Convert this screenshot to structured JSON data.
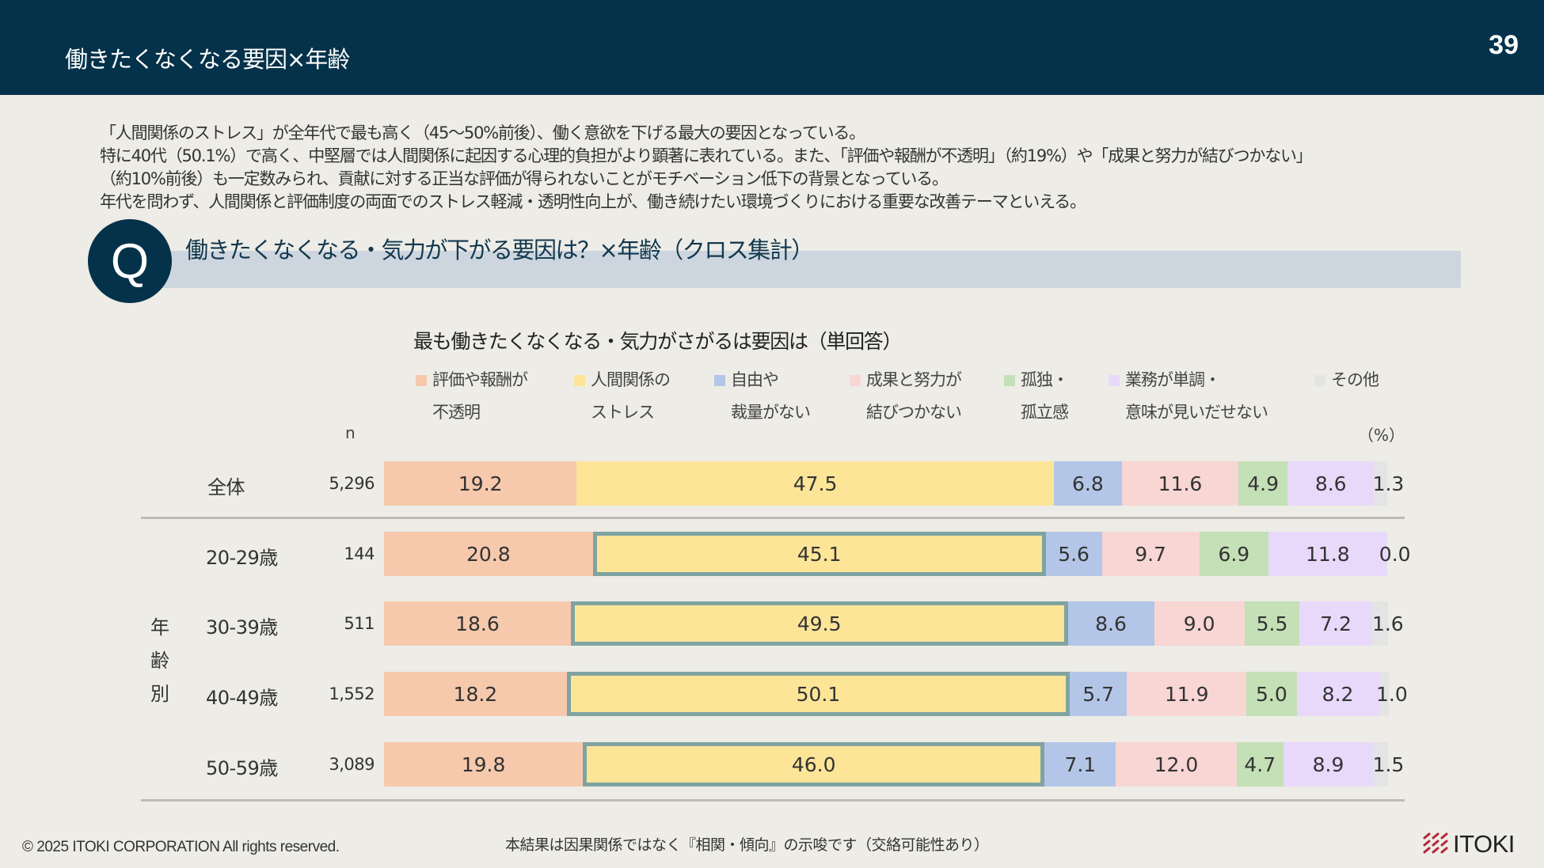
{
  "header": {
    "title": "働きたくなくなる要因×年齢",
    "page_number": "39"
  },
  "summary": {
    "lines": [
      "「人間関係のストレス」が全年代で最も高く（45～50%前後）、働く意欲を下げる最大の要因となっている。",
      "特に40代（50.1%）で高く、中堅層では人間関係に起因する心理的負担がより顕著に表れている。また、「評価や報酬が不透明」（約19%）や「成果と努力が結びつかない」",
      "（約10%前後）も一定数みられ、貢献に対する正当な評価が得られないことがモチベーション低下の背景となっている。",
      "年代を問わず、人間関係と評価制度の両面でのストレス軽減・透明性向上が、働き続けたい環境づくりにおける重要な改善テーマといえる。"
    ]
  },
  "question": {
    "badge": "Q",
    "text": "働きたくなくなる・気力が下がる要因は？×年齢（クロス集計）"
  },
  "chart_labels": {
    "n_header": "n",
    "unit": "（%）",
    "age_group_label": [
      "年",
      "齢",
      "別"
    ]
  },
  "footer": {
    "copyright": "© 2025 ITOKI CORPORATION  All rights reserved.",
    "note": "本結果は因果関係ではなく『相関・傾向』の示唆です（交絡可能性あり）",
    "logo_text": "ITOKI",
    "logo_mark_color": "#b5253a"
  },
  "chart_data": {
    "type": "bar",
    "orientation": "horizontal",
    "stacked": true,
    "percent_stacked": true,
    "title": "最も働きたくなくなる・気力がさがるは要因は（単回答）",
    "unit": "%",
    "categories": [
      "全体",
      "20-29歳",
      "30-39歳",
      "40-49歳",
      "50-59歳"
    ],
    "n": [
      "5,296",
      "144",
      "511",
      "1,552",
      "3,089"
    ],
    "series": [
      {
        "name": "評価や報酬が不透明",
        "legend_lines": [
          "評価や報酬が",
          "不透明"
        ],
        "color": "#f6c9ad",
        "values": [
          19.2,
          20.8,
          18.6,
          18.2,
          19.8
        ]
      },
      {
        "name": "人間関係のストレス",
        "legend_lines": [
          "人間関係の",
          "ストレス"
        ],
        "color": "#fde598",
        "values": [
          47.5,
          45.1,
          49.5,
          50.1,
          46.0
        ],
        "highlight_rows": [
          1,
          2,
          3,
          4
        ]
      },
      {
        "name": "自由や裁量がない",
        "legend_lines": [
          "自由や",
          "裁量がない"
        ],
        "color": "#b3c6e7",
        "values": [
          6.8,
          5.6,
          8.6,
          5.7,
          7.1
        ]
      },
      {
        "name": "成果と努力が結びつかない",
        "legend_lines": [
          "成果と努力が",
          "結びつかない"
        ],
        "color": "#f8d6d4",
        "values": [
          11.6,
          9.7,
          9.0,
          11.9,
          12.0
        ]
      },
      {
        "name": "孤独・孤立感",
        "legend_lines": [
          "孤独・",
          "孤立感"
        ],
        "color": "#c4e0b6",
        "values": [
          4.9,
          6.9,
          5.5,
          5.0,
          4.7
        ]
      },
      {
        "name": "業務が単調・意味が見いだせない",
        "legend_lines": [
          "業務が単調・",
          "意味が見いだせない"
        ],
        "color": "#e8d9fb",
        "values": [
          8.6,
          11.8,
          7.2,
          8.2,
          8.9
        ]
      },
      {
        "name": "その他",
        "legend_lines": [
          "その他",
          ""
        ],
        "color": "#e4e4e4",
        "values": [
          1.3,
          0.0,
          1.6,
          1.0,
          1.5
        ]
      }
    ],
    "highlight_color": "#7fa3a2",
    "legend_position": "top",
    "grid": false
  }
}
